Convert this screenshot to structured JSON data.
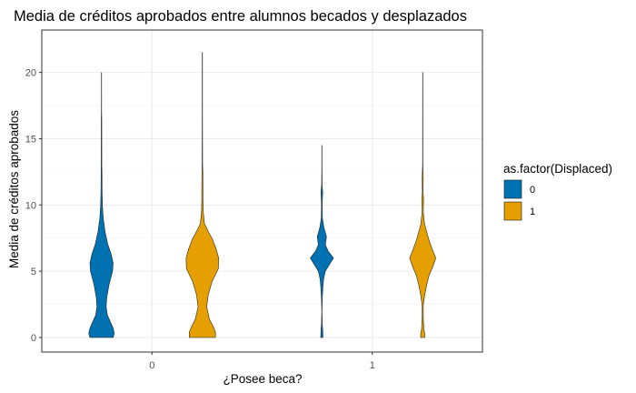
{
  "chart_data": {
    "type": "violin",
    "title": "Media de créditos aprobados entre alumnos becados y desplazados",
    "xlabel": "¿Posee beca?",
    "ylabel": "Media de créditos aprobados",
    "categories": [
      "0",
      "1"
    ],
    "yticks": [
      0,
      5,
      10,
      15,
      20
    ],
    "ylim": [
      -1.1,
      23.2
    ],
    "grid": true,
    "legend": {
      "title": "as.factor(Displaced)",
      "position": "right",
      "entries": [
        {
          "label": "0",
          "color": "#0072B2"
        },
        {
          "label": "1",
          "color": "#E69F00"
        }
      ]
    },
    "series": [
      {
        "name": "0",
        "color": "#0072B2",
        "violins": [
          {
            "category": "0",
            "profile": [
              [
                0,
                0.4
              ],
              [
                0.3,
                0.44
              ],
              [
                0.7,
                0.4
              ],
              [
                1.2,
                0.3
              ],
              [
                1.7,
                0.2
              ],
              [
                2.3,
                0.16
              ],
              [
                3.0,
                0.18
              ],
              [
                4.0,
                0.26
              ],
              [
                5.0,
                0.38
              ],
              [
                5.6,
                0.4
              ],
              [
                6.3,
                0.33
              ],
              [
                7.0,
                0.22
              ],
              [
                8.0,
                0.12
              ],
              [
                9.0,
                0.06
              ],
              [
                10.0,
                0.03
              ],
              [
                11.0,
                0.02
              ],
              [
                12.6,
                0.014
              ],
              [
                13.0,
                0.01
              ],
              [
                16.4,
                0.008
              ],
              [
                17.0,
                0.004
              ],
              [
                20.0,
                0.003
              ]
            ]
          },
          {
            "category": "1",
            "profile": [
              [
                0,
                0.04
              ],
              [
                0.3,
                0.035
              ],
              [
                0.6,
                0.03
              ],
              [
                1.0,
                0.012
              ],
              [
                2.0,
                0.005
              ],
              [
                2.8,
                0.012
              ],
              [
                3.6,
                0.03
              ],
              [
                4.4,
                0.06
              ],
              [
                5.0,
                0.12
              ],
              [
                5.5,
                0.26
              ],
              [
                6.0,
                0.4
              ],
              [
                6.5,
                0.22
              ],
              [
                7.0,
                0.12
              ],
              [
                7.6,
                0.16
              ],
              [
                8.3,
                0.07
              ],
              [
                9.0,
                0.02
              ],
              [
                10.0,
                0.012
              ],
              [
                11.0,
                0.03
              ],
              [
                11.5,
                0.008
              ],
              [
                13.0,
                0.004
              ],
              [
                14.5,
                0.003
              ]
            ]
          }
        ]
      },
      {
        "name": "1",
        "color": "#E69F00",
        "violins": [
          {
            "category": "0",
            "profile": [
              [
                0,
                0.45
              ],
              [
                0.4,
                0.45
              ],
              [
                0.8,
                0.38
              ],
              [
                1.4,
                0.24
              ],
              [
                2.3,
                0.15
              ],
              [
                3.2,
                0.2
              ],
              [
                4.2,
                0.33
              ],
              [
                5.2,
                0.55
              ],
              [
                6.0,
                0.56
              ],
              [
                6.7,
                0.47
              ],
              [
                7.4,
                0.35
              ],
              [
                8.0,
                0.2
              ],
              [
                8.6,
                0.07
              ],
              [
                9.5,
                0.03
              ],
              [
                10.5,
                0.02
              ],
              [
                11.5,
                0.02
              ],
              [
                12.5,
                0.016
              ],
              [
                13.0,
                0.008
              ],
              [
                16.5,
                0.005
              ],
              [
                21.5,
                0.004
              ]
            ]
          },
          {
            "category": "1",
            "profile": [
              [
                0,
                0.07
              ],
              [
                0.3,
                0.07
              ],
              [
                0.6,
                0.04
              ],
              [
                1.5,
                0.02
              ],
              [
                2.4,
                0.02
              ],
              [
                3.1,
                0.06
              ],
              [
                4.0,
                0.14
              ],
              [
                4.7,
                0.22
              ],
              [
                5.3,
                0.34
              ],
              [
                6.0,
                0.45
              ],
              [
                6.7,
                0.32
              ],
              [
                7.4,
                0.21
              ],
              [
                8.1,
                0.12
              ],
              [
                8.6,
                0.06
              ],
              [
                9.5,
                0.02
              ],
              [
                10.5,
                0.03
              ],
              [
                11.0,
                0.012
              ],
              [
                12.0,
                0.02
              ],
              [
                13.0,
                0.005
              ],
              [
                20.0,
                0.003
              ]
            ]
          }
        ]
      }
    ]
  }
}
